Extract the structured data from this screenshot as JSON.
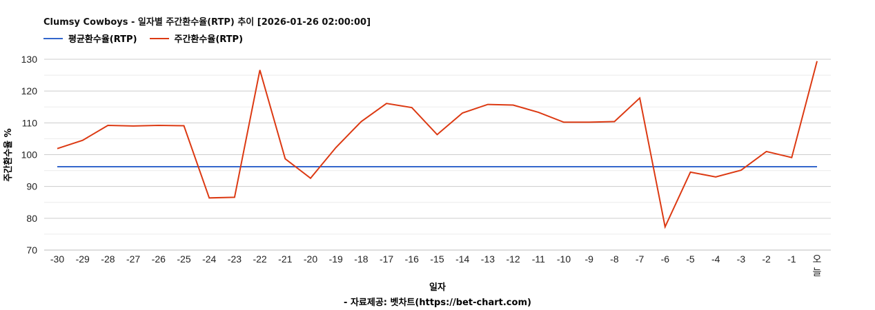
{
  "header": {
    "title": "Clumsy Cowboys - 일자별 주간환수율(RTP) 추이 [2026-01-26 02:00:00]"
  },
  "legend": [
    {
      "label": "평균환수율(RTP)",
      "color": "#3366cc"
    },
    {
      "label": "주간환수율(RTP)",
      "color": "#dc3912"
    }
  ],
  "axes": {
    "ylabel": "주간환수율 %",
    "xlabel": "일자",
    "credit": "- 자료제공: 벳차트(https://bet-chart.com)"
  },
  "chart_data": {
    "type": "line",
    "title": "Clumsy Cowboys - 일자별 주간환수율(RTP) 추이 [2026-01-26 02:00:00]",
    "xlabel": "일자",
    "ylabel": "주간환수율 %",
    "ylim": [
      70,
      130
    ],
    "yticks": [
      70,
      80,
      90,
      100,
      110,
      120,
      130
    ],
    "grid": true,
    "minor_grid_step": 5,
    "legend_position": "top-left",
    "categories": [
      "-30",
      "-29",
      "-28",
      "-27",
      "-26",
      "-25",
      "-24",
      "-23",
      "-22",
      "-21",
      "-20",
      "-19",
      "-18",
      "-17",
      "-16",
      "-15",
      "-14",
      "-13",
      "-12",
      "-11",
      "-10",
      "-9",
      "-8",
      "-7",
      "-6",
      "-5",
      "-4",
      "-3",
      "-2",
      "-1",
      "오늘"
    ],
    "series": [
      {
        "name": "평균환수율(RTP)",
        "color": "#3366cc",
        "values": [
          96.2,
          96.2,
          96.2,
          96.2,
          96.2,
          96.2,
          96.2,
          96.2,
          96.2,
          96.2,
          96.2,
          96.2,
          96.2,
          96.2,
          96.2,
          96.2,
          96.2,
          96.2,
          96.2,
          96.2,
          96.2,
          96.2,
          96.2,
          96.2,
          96.2,
          96.2,
          96.2,
          96.2,
          96.2,
          96.2,
          96.2
        ]
      },
      {
        "name": "주간환수율(RTP)",
        "color": "#dc3912",
        "values": [
          101.9,
          104.5,
          109.2,
          109.0,
          109.2,
          109.1,
          86.4,
          86.6,
          126.6,
          98.7,
          92.6,
          102.2,
          110.4,
          116.1,
          114.8,
          106.3,
          113.1,
          115.8,
          115.6,
          113.3,
          110.2,
          110.2,
          110.4,
          117.8,
          77.3,
          94.5,
          93.0,
          95.1,
          101.0,
          99.1,
          129.4
        ]
      }
    ]
  }
}
